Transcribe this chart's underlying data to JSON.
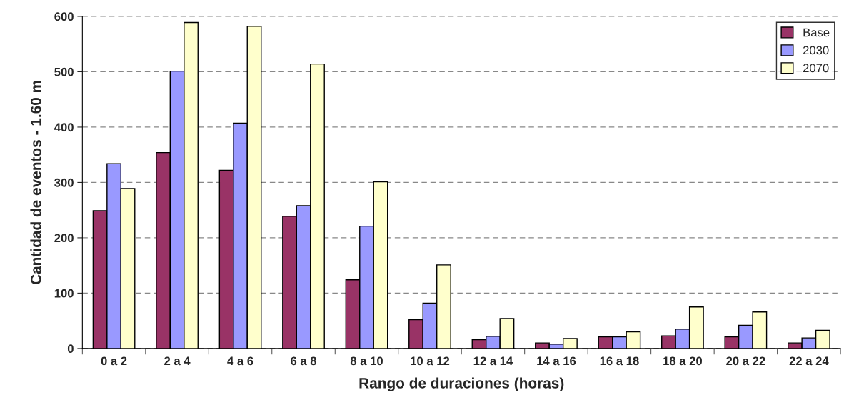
{
  "chart_data": {
    "type": "bar",
    "xlabel": "Rango de duraciones (horas)",
    "ylabel": "Cantidad de eventos - 1.60 m",
    "categories": [
      "0 a 2",
      "2 a 4",
      "4 a 6",
      "6 a 8",
      "8 a 10",
      "10 a 12",
      "12 a 14",
      "14 a 16",
      "16 a 18",
      "18 a 20",
      "20 a 22",
      "22 a 24"
    ],
    "series": [
      {
        "name": "Base",
        "color": "#993366",
        "values": [
          249,
          354,
          322,
          239,
          124,
          52,
          16,
          10,
          21,
          23,
          21,
          10
        ]
      },
      {
        "name": "2030",
        "color": "#9999ff",
        "values": [
          334,
          501,
          407,
          258,
          221,
          82,
          22,
          8,
          21,
          35,
          42,
          19
        ]
      },
      {
        "name": "2070",
        "color": "#ffffcc",
        "values": [
          289,
          589,
          582,
          514,
          301,
          151,
          54,
          18,
          30,
          75,
          66,
          33
        ]
      }
    ],
    "ylim": [
      0,
      600
    ],
    "yticks": [
      0,
      100,
      200,
      300,
      400,
      500,
      600
    ],
    "grid": "y",
    "legend": "top right"
  }
}
